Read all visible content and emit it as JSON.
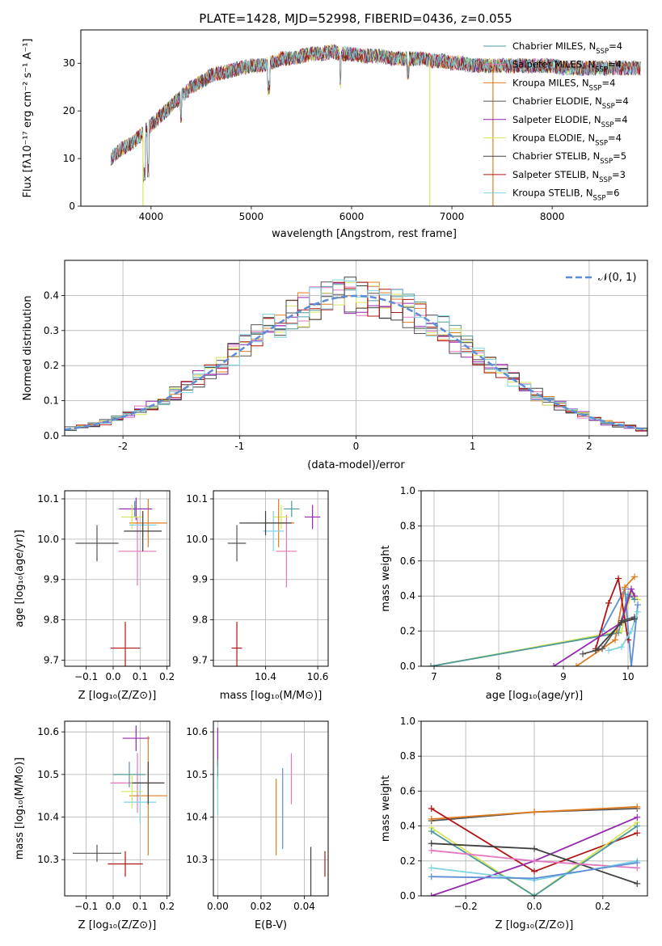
{
  "chart_data": [
    {
      "id": "spectrum",
      "type": "line",
      "title": "PLATE=1428, MJD=52998, FIBERID=0436, z=0.055",
      "xlabel": "wavelength [Angstrom, rest frame]",
      "ylabel": "Flux [fλ10⁻¹⁷ erg cm⁻² s⁻¹ A⁻¹]",
      "xlim": [
        3300,
        8950
      ],
      "ylim": [
        0,
        37
      ],
      "xticks": [
        4000,
        5000,
        6000,
        7000,
        8000
      ],
      "yticks": [
        0,
        10,
        20,
        30
      ],
      "grid": false,
      "legend_position": "top-right",
      "envelope": {
        "x": [
          3600,
          3700,
          3800,
          3900,
          4000,
          4100,
          4200,
          4300,
          4400,
          4500,
          4600,
          4700,
          4800,
          4900,
          5000,
          5100,
          5200,
          5300,
          5400,
          5500,
          5600,
          5700,
          5800,
          5900,
          6000,
          6100,
          6200,
          6300,
          6400,
          6500,
          6600,
          6700,
          6800,
          6900,
          7000,
          7100,
          7200,
          7300,
          7400,
          7500,
          7600,
          7700,
          7800,
          7900,
          8000,
          8100,
          8200,
          8300,
          8400,
          8500,
          8600,
          8700,
          8800
        ],
        "y": [
          10,
          12,
          13,
          15,
          17,
          19,
          21,
          23,
          25,
          26,
          27.5,
          28,
          28.5,
          29,
          29.5,
          29.5,
          30,
          31,
          31,
          31.5,
          32,
          32,
          32.5,
          32,
          32,
          31.5,
          31.5,
          31.5,
          31,
          31,
          31,
          31,
          30.5,
          30.5,
          30,
          30,
          29.5,
          29.5,
          29.5,
          29.5,
          29.5,
          29.5,
          29.5,
          29.5,
          29.5,
          29,
          29,
          29,
          29,
          29,
          29,
          29,
          29
        ]
      },
      "series": [
        {
          "name": "Chabrier MILES, N<sub>SSP</sub>=4",
          "color": "#4c9999"
        },
        {
          "name": "Salpeter MILES, N<sub>SSP</sub>=4",
          "color": "#e377c2"
        },
        {
          "name": "Kroupa MILES, N<sub>SSP</sub>=4",
          "color": "#e07c20"
        },
        {
          "name": "Chabrier ELODIE, N<sub>SSP</sub>=4",
          "color": "#555555"
        },
        {
          "name": "Salpeter ELODIE, N<sub>SSP</sub>=4",
          "color": "#9527b0"
        },
        {
          "name": "Kroupa ELODIE, N<sub>SSP</sub>=4",
          "color": "#d7e65b"
        },
        {
          "name": "Chabrier STELIB, N<sub>SSP</sub>=5",
          "color": "#404040"
        },
        {
          "name": "Salpeter STELIB, N<sub>SSP</sub>=3",
          "color": "#b11414"
        },
        {
          "name": "Kroupa STELIB, N<sub>SSP</sub>=6",
          "color": "#7fd3e3"
        }
      ],
      "drop_lines": [
        {
          "x": 3920,
          "color": "#d7e65b"
        },
        {
          "x": 6780,
          "color": "#d7e65b"
        },
        {
          "x": 7410,
          "color": "#e07c20"
        }
      ]
    },
    {
      "id": "histogram",
      "type": "bar",
      "xlabel": "(data-model)/error",
      "ylabel": "Normed distribution",
      "xlim": [
        -2.5,
        2.5
      ],
      "ylim": [
        0,
        0.5
      ],
      "xticks": [
        -2,
        -1,
        0,
        1,
        2
      ],
      "yticks": [
        0.0,
        0.1,
        0.2,
        0.3,
        0.4
      ],
      "grid": true,
      "legend_position": "top-right",
      "normal_curve": {
        "name": "𝒩(0, 1)",
        "color": "#5d8dd6",
        "mu": 0,
        "sigma": 1
      },
      "bin_width": 0.1,
      "bin_start": -2.5,
      "base_values": [
        0.013,
        0.016,
        0.02,
        0.025,
        0.03,
        0.037,
        0.045,
        0.054,
        0.065,
        0.078,
        0.091,
        0.106,
        0.123,
        0.141,
        0.16,
        0.18,
        0.2,
        0.221,
        0.241,
        0.262,
        0.281,
        0.3,
        0.318,
        0.334,
        0.349,
        0.362,
        0.373,
        0.382,
        0.389,
        0.394,
        0.397,
        0.398,
        0.397,
        0.394,
        0.389,
        0.382,
        0.373,
        0.362,
        0.349,
        0.334,
        0.318,
        0.3,
        0.281,
        0.262,
        0.241,
        0.221,
        0.2,
        0.18,
        0.16,
        0.141
      ],
      "series_colors": [
        "#4c9999",
        "#e377c2",
        "#e07c20",
        "#555555",
        "#9527b0",
        "#d7e65b",
        "#404040",
        "#b11414",
        "#7fd3e3"
      ]
    },
    {
      "id": "age-vs-z",
      "type": "scatter",
      "xlabel": "Z [log₁₀(Z/Z⊙)]",
      "ylabel": "age  [log₁₀(age/yr)]",
      "xlim": [
        -0.18,
        0.21
      ],
      "ylim": [
        9.685,
        10.12
      ],
      "xticks": [
        -0.1,
        0.0,
        0.1,
        0.2
      ],
      "xticklabels": [
        "−0.1",
        "0.0",
        "0.1",
        "0.2"
      ],
      "yticks": [
        9.7,
        9.8,
        9.9,
        10.0,
        10.1
      ],
      "grid": true,
      "points": [
        {
          "x": -0.06,
          "y": 9.99,
          "xerr": 0.08,
          "yerr": 0.045,
          "color": "#555555"
        },
        {
          "x": 0.045,
          "y": 9.73,
          "xerr": 0.055,
          "yerr": 0.065,
          "color": "#b11414"
        },
        {
          "x": 0.09,
          "y": 9.97,
          "xerr": 0.07,
          "yerr": 0.085,
          "color": "#e377c2"
        },
        {
          "x": 0.08,
          "y": 10.075,
          "xerr": 0.06,
          "yerr": 0.02,
          "color": "#4c9999"
        },
        {
          "x": 0.13,
          "y": 10.04,
          "xerr": 0.07,
          "yerr": 0.06,
          "color": "#e07c20"
        },
        {
          "x": 0.085,
          "y": 10.075,
          "xerr": 0.06,
          "yerr": 0.028,
          "color": "#9527b0"
        },
        {
          "x": 0.07,
          "y": 10.055,
          "xerr": 0.04,
          "yerr": 0.03,
          "color": "#d7e65b"
        },
        {
          "x": 0.11,
          "y": 10.035,
          "xerr": 0.05,
          "yerr": 0.03,
          "color": "#7fd3e3"
        },
        {
          "x": 0.11,
          "y": 10.02,
          "xerr": 0.07,
          "yerr": 0.05,
          "color": "#404040"
        }
      ]
    },
    {
      "id": "age-vs-mass",
      "type": "scatter",
      "xlabel": "mass [log₁₀(M/M⊙)]",
      "xlim": [
        10.2,
        10.64
      ],
      "ylim": [
        9.685,
        10.12
      ],
      "xticks": [
        10.4,
        10.6
      ],
      "yticks": [
        9.7,
        9.8,
        9.9,
        10.0,
        10.1
      ],
      "grid": true,
      "points": [
        {
          "x": 10.29,
          "y": 9.99,
          "xerr": 0.035,
          "yerr": 0.045,
          "color": "#555555"
        },
        {
          "x": 10.29,
          "y": 9.73,
          "xerr": 0.02,
          "yerr": 0.065,
          "color": "#b11414"
        },
        {
          "x": 10.48,
          "y": 9.97,
          "xerr": 0.04,
          "yerr": 0.09,
          "color": "#e377c2"
        },
        {
          "x": 10.5,
          "y": 10.075,
          "xerr": 0.03,
          "yerr": 0.02,
          "color": "#4c9999"
        },
        {
          "x": 10.58,
          "y": 10.055,
          "xerr": 0.03,
          "yerr": 0.03,
          "color": "#9527b0"
        },
        {
          "x": 10.46,
          "y": 10.055,
          "xerr": 0.03,
          "yerr": 0.03,
          "color": "#d7e65b"
        },
        {
          "x": 10.45,
          "y": 10.04,
          "xerr": 0.06,
          "yerr": 0.06,
          "color": "#e07c20"
        },
        {
          "x": 10.43,
          "y": 10.02,
          "xerr": 0.04,
          "yerr": 0.05,
          "color": "#7fd3e3"
        },
        {
          "x": 10.4,
          "y": 10.04,
          "xerr": 0.1,
          "yerr": 0.03,
          "color": "#404040"
        }
      ]
    },
    {
      "id": "weight-vs-age",
      "type": "line",
      "xlabel": "age  [log₁₀(age/yr)]",
      "ylabel": "mass weight",
      "xlim": [
        6.8,
        10.3
      ],
      "ylim": [
        0,
        1
      ],
      "xticks": [
        7,
        8,
        9,
        10
      ],
      "yticks": [
        0.0,
        0.2,
        0.4,
        0.6,
        0.8,
        1.0
      ],
      "grid": true,
      "series": [
        {
          "color": "#d7e65b",
          "x": [
            6.95,
            9.9,
            10.05,
            10.15
          ],
          "y": [
            0.0,
            0.2,
            0.42,
            0.38
          ]
        },
        {
          "color": "#4c9999",
          "x": [
            6.95,
            9.85,
            10.0,
            10.1
          ],
          "y": [
            0.0,
            0.19,
            0.41,
            0.38
          ]
        },
        {
          "color": "#5d8dd6",
          "x": [
            9.6,
            9.95,
            10.05,
            10.15
          ],
          "y": [
            0.2,
            0.44,
            0.0,
            0.35
          ]
        },
        {
          "color": "#e07c20",
          "x": [
            9.2,
            9.8,
            9.95,
            10.1
          ],
          "y": [
            0.0,
            0.15,
            0.45,
            0.51
          ]
        },
        {
          "color": "#b11414",
          "x": [
            9.5,
            9.7,
            9.85,
            10.0
          ],
          "y": [
            0.1,
            0.36,
            0.5,
            0.15
          ]
        },
        {
          "color": "#9527b0",
          "x": [
            8.85,
            9.9,
            10.05,
            10.1
          ],
          "y": [
            0.0,
            0.25,
            0.44,
            0.4
          ]
        },
        {
          "color": "#555555",
          "x": [
            9.3,
            9.6,
            9.9,
            10.1
          ],
          "y": [
            0.07,
            0.1,
            0.26,
            0.28
          ]
        },
        {
          "color": "#7fd3e3",
          "x": [
            9.7,
            9.9,
            10.05,
            10.15
          ],
          "y": [
            0.09,
            0.11,
            0.2,
            0.31
          ]
        },
        {
          "color": "#404040",
          "x": [
            9.5,
            9.9,
            10.1
          ],
          "y": [
            0.09,
            0.25,
            0.27
          ]
        }
      ]
    },
    {
      "id": "mass-vs-z",
      "type": "scatter",
      "xlabel": "Z [log₁₀(Z/Z⊙)]",
      "ylabel": "mass [log₁₀(M/M⊙)]",
      "xlim": [
        -0.18,
        0.21
      ],
      "ylim": [
        10.215,
        10.625
      ],
      "xticks": [
        -0.1,
        0.0,
        0.1,
        0.2
      ],
      "xticklabels": [
        "−0.1",
        "0.0",
        "0.1",
        "0.2"
      ],
      "yticks": [
        10.3,
        10.4,
        10.5,
        10.6
      ],
      "grid": true,
      "points": [
        {
          "x": -0.06,
          "y": 10.315,
          "xerr": 0.09,
          "yerr": 0.02,
          "color": "#555555"
        },
        {
          "x": 0.045,
          "y": 10.29,
          "xerr": 0.065,
          "yerr": 0.03,
          "color": "#b11414"
        },
        {
          "x": 0.085,
          "y": 10.585,
          "xerr": 0.05,
          "yerr": 0.03,
          "color": "#9527b0"
        },
        {
          "x": 0.09,
          "y": 10.48,
          "xerr": 0.1,
          "yerr": 0.07,
          "color": "#e377c2"
        },
        {
          "x": 0.06,
          "y": 10.5,
          "xerr": 0.06,
          "yerr": 0.03,
          "color": "#4c9999"
        },
        {
          "x": 0.13,
          "y": 10.45,
          "xerr": 0.07,
          "yerr": 0.14,
          "color": "#e07c20"
        },
        {
          "x": 0.07,
          "y": 10.46,
          "xerr": 0.04,
          "yerr": 0.04,
          "color": "#d7e65b"
        },
        {
          "x": 0.1,
          "y": 10.435,
          "xerr": 0.06,
          "yerr": 0.05,
          "color": "#7fd3e3"
        },
        {
          "x": 0.13,
          "y": 10.48,
          "xerr": 0.06,
          "yerr": 0.05,
          "color": "#404040"
        }
      ]
    },
    {
      "id": "mass-vs-ebv",
      "type": "scatter",
      "xlabel": "E(B-V)",
      "xlim": [
        -0.002,
        0.051
      ],
      "ylim": [
        10.215,
        10.625
      ],
      "xticks": [
        0.0,
        0.02,
        0.04
      ],
      "xticklabels": [
        "0.00",
        "0.02",
        "0.04"
      ],
      "yticks": [
        10.3,
        10.4,
        10.5,
        10.6
      ],
      "grid": true,
      "points": [
        {
          "x": 0.0,
          "y": 10.565,
          "xerr": 0,
          "yerr": 0.045,
          "color": "#9527b0"
        },
        {
          "x": 0.0,
          "y": 10.5,
          "xerr": 0,
          "yerr": 0.035,
          "color": "#4c9999"
        },
        {
          "x": 0.0,
          "y": 10.45,
          "xerr": 0,
          "yerr": 0.045,
          "color": "#7fd3e3"
        },
        {
          "x": 0.027,
          "y": 10.4,
          "xerr": 0,
          "yerr": 0.09,
          "color": "#e07c20"
        },
        {
          "x": 0.03,
          "y": 10.42,
          "xerr": 0,
          "yerr": 0.095,
          "color": "#5d8dd6"
        },
        {
          "x": 0.034,
          "y": 10.49,
          "xerr": 0,
          "yerr": 0.06,
          "color": "#e377c2"
        },
        {
          "x": 0.043,
          "y": 10.265,
          "xerr": 0,
          "yerr": 0.065,
          "color": "#404040"
        },
        {
          "x": 0.0495,
          "y": 10.29,
          "xerr": 0,
          "yerr": 0.03,
          "color": "#b11414"
        }
      ]
    },
    {
      "id": "weight-vs-z",
      "type": "line",
      "xlabel": "Z [log₁₀(Z/Z⊙)]",
      "ylabel": "mass weight",
      "xlim": [
        -0.33,
        0.33
      ],
      "ylim": [
        0,
        1
      ],
      "xticks": [
        -0.2,
        0.0,
        0.2
      ],
      "xticklabels": [
        "−0.2",
        "0.0",
        "0.2"
      ],
      "yticks": [
        0.0,
        0.2,
        0.4,
        0.6,
        0.8,
        1.0
      ],
      "grid": true,
      "series": [
        {
          "color": "#555555",
          "x": [
            -0.3,
            0.0,
            0.3
          ],
          "y": [
            0.43,
            0.48,
            0.5
          ]
        },
        {
          "color": "#e07c20",
          "x": [
            -0.3,
            0.0,
            0.3
          ],
          "y": [
            0.44,
            0.48,
            0.51
          ]
        },
        {
          "color": "#b11414",
          "x": [
            -0.3,
            0.0,
            0.3
          ],
          "y": [
            0.5,
            0.14,
            0.36
          ]
        },
        {
          "color": "#d7e65b",
          "x": [
            -0.3,
            0.0,
            0.3
          ],
          "y": [
            0.39,
            0.0,
            0.42
          ]
        },
        {
          "color": "#4c9999",
          "x": [
            -0.3,
            0.0,
            0.3
          ],
          "y": [
            0.37,
            0.0,
            0.4
          ]
        },
        {
          "color": "#9527b0",
          "x": [
            -0.3,
            0.0,
            0.3
          ],
          "y": [
            0.0,
            0.2,
            0.45
          ]
        },
        {
          "color": "#404040",
          "x": [
            -0.3,
            0.0,
            0.3
          ],
          "y": [
            0.3,
            0.27,
            0.07
          ]
        },
        {
          "color": "#e377c2",
          "x": [
            -0.3,
            0.0,
            0.3
          ],
          "y": [
            0.26,
            0.2,
            0.16
          ]
        },
        {
          "color": "#7fd3e3",
          "x": [
            -0.3,
            0.0,
            0.3
          ],
          "y": [
            0.16,
            0.09,
            0.2
          ]
        },
        {
          "color": "#5d8dd6",
          "x": [
            -0.3,
            0.0,
            0.3
          ],
          "y": [
            0.11,
            0.1,
            0.19
          ]
        }
      ]
    }
  ]
}
